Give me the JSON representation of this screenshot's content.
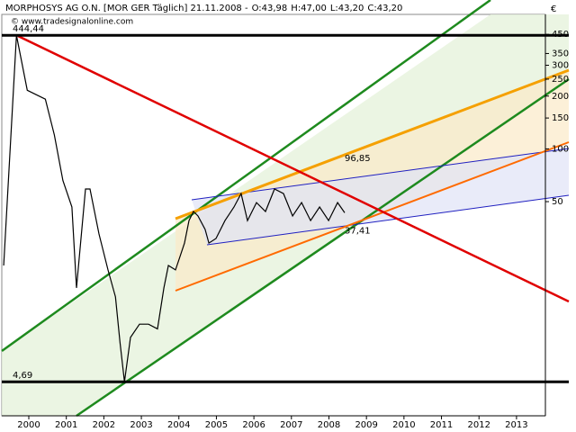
{
  "chart_data": {
    "type": "line",
    "title": "MORPHOSYS AG O.N. [MOR GER  Täglich] 21.11.2008 -",
    "quote": [
      "O:43,98",
      "H:47,00",
      "L:43,20",
      "C:43,20"
    ],
    "quote_colors": [
      "#d00000",
      "#000000",
      "#000000",
      "#d00000"
    ],
    "watermark": "© www.tradesignalonline.com",
    "currency": "€",
    "log_scale": true,
    "x": [
      1999.83,
      2000.17,
      2000.46,
      2000.94,
      2001.18,
      2001.41,
      2001.65,
      2001.77,
      2002.01,
      2002.13,
      2002.37,
      2002.61,
      2002.81,
      2002.93,
      2003.05,
      2003.21,
      2003.45,
      2003.69,
      2003.93,
      2004.1,
      2004.22,
      2004.41,
      2004.53,
      2004.65,
      2004.77,
      2004.89,
      2005.01,
      2005.2,
      2005.3,
      2005.49,
      2005.73,
      2005.97,
      2006.16,
      2006.33,
      2006.57,
      2006.81,
      2007.05,
      2007.29,
      2007.53,
      2007.77,
      2008.01,
      2008.25,
      2008.49,
      2008.73,
      2008.92
    ],
    "series": [
      {
        "name": "MORPHOSYS AG O.N.",
        "color": "#000000",
        "values": [
          21.6,
          444.44,
          216,
          192,
          120,
          66,
          46.6,
          16.1,
          59,
          59,
          32.7,
          20.4,
          14.3,
          7.9,
          4.69,
          8.4,
          10.0,
          10.0,
          9.4,
          16.1,
          21.6,
          20.4,
          24.3,
          29,
          39,
          43.9,
          41.4,
          34.7,
          29,
          30.8,
          39,
          46.6,
          55.6,
          39,
          49.4,
          43.9,
          59,
          55.6,
          41.4,
          49.4,
          39,
          46.6,
          39,
          49.4,
          43.2
        ]
      }
    ],
    "levels": [
      {
        "value": 444.44,
        "label": "444,44",
        "color": "#000000"
      },
      {
        "value": 4.69,
        "label": "4,69",
        "color": "#000000"
      }
    ],
    "annotations": [
      {
        "value": 96.85,
        "label": "96,85",
        "color": "#f0a020"
      },
      {
        "value": 37.41,
        "label": "37,41",
        "color": "#d00000"
      }
    ],
    "xlim": [
      1999.78,
      2014.27
    ],
    "ylim": [
      3,
      585
    ],
    "xticks": [
      {
        "value": 2000.5,
        "label": "2000"
      },
      {
        "value": 2001.5,
        "label": "2001"
      },
      {
        "value": 2002.5,
        "label": "2002"
      },
      {
        "value": 2003.5,
        "label": "2003"
      },
      {
        "value": 2004.5,
        "label": "2004"
      },
      {
        "value": 2005.5,
        "label": "2005"
      },
      {
        "value": 2006.5,
        "label": "2006"
      },
      {
        "value": 2007.5,
        "label": "2007"
      },
      {
        "value": 2008.5,
        "label": "2008"
      },
      {
        "value": 2009.5,
        "label": "2009"
      },
      {
        "value": 2010.5,
        "label": "2010"
      },
      {
        "value": 2011.5,
        "label": "2011"
      },
      {
        "value": 2012.5,
        "label": "2012"
      },
      {
        "value": 2013.5,
        "label": "2013"
      }
    ],
    "yticks": [
      450,
      350,
      300,
      250,
      200,
      150,
      100,
      50
    ]
  }
}
